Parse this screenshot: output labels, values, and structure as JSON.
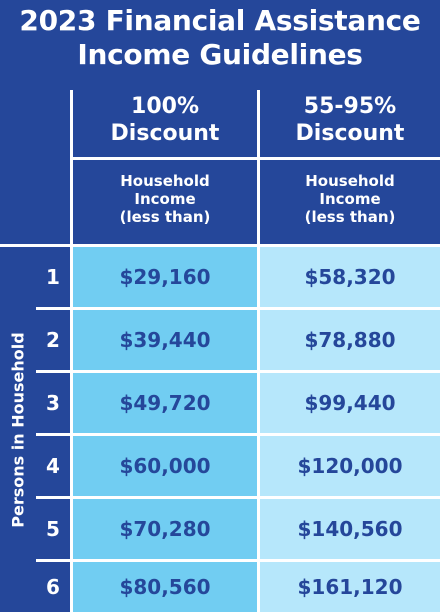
{
  "title": {
    "line1": "2023 Financial Assistance",
    "line2": "Income Guidelines"
  },
  "columns": [
    {
      "header_line1": "100%",
      "header_line2": "Discount",
      "sub_line1": "Household",
      "sub_line2": "Income",
      "sub_line3": "(less than)"
    },
    {
      "header_line1": "55-95%",
      "header_line2": "Discount",
      "sub_line1": "Household",
      "sub_line2": "Income",
      "sub_line3": "(less than)"
    }
  ],
  "side_label": "Persons in Household",
  "rows": [
    {
      "persons": "1",
      "col1": "$29,160",
      "col2": "$58,320"
    },
    {
      "persons": "2",
      "col1": "$39,440",
      "col2": "$78,880"
    },
    {
      "persons": "3",
      "col1": "$49,720",
      "col2": "$99,440"
    },
    {
      "persons": "4",
      "col1": "$60,000",
      "col2": "$120,000"
    },
    {
      "persons": "5",
      "col1": "$70,280",
      "col2": "$140,560"
    },
    {
      "persons": "6",
      "col1": "$80,560",
      "col2": "$161,120"
    }
  ],
  "colors": {
    "navy": "#25479a",
    "col1_fill": "#71cdf2",
    "col2_fill": "#b6e7fb",
    "text_light": "#ffffff"
  }
}
